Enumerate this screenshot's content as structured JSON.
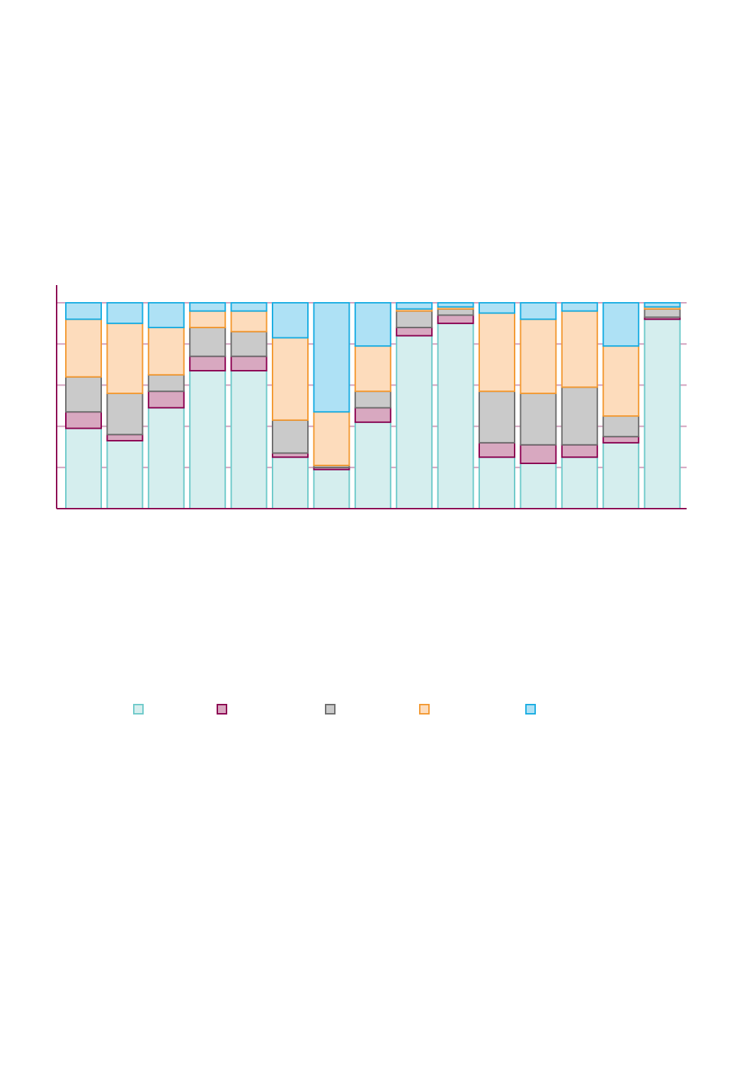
{
  "chart_data": {
    "type": "bar",
    "stacked": true,
    "categories": [
      "",
      "",
      "",
      "",
      "",
      "",
      "",
      "",
      "",
      "",
      "",
      "",
      "",
      "",
      ""
    ],
    "ylim": [
      0,
      100
    ],
    "grid": true,
    "legend_position": "bottom",
    "series": [
      {
        "name": "",
        "fill": "#d5eeee",
        "stroke": "#6fcaca",
        "values": [
          39,
          33,
          49,
          67,
          67,
          25,
          19,
          42,
          84,
          90,
          25,
          22,
          25,
          32,
          92
        ]
      },
      {
        "name": "",
        "fill": "#d8a8c0",
        "stroke": "#8b0050",
        "values": [
          8,
          3,
          8,
          7,
          7,
          2,
          1,
          7,
          4,
          4,
          7,
          9,
          6,
          3,
          1
        ]
      },
      {
        "name": "",
        "fill": "#cacaca",
        "stroke": "#6e6e6e",
        "values": [
          17,
          20,
          8,
          14,
          12,
          16,
          1,
          8,
          8,
          3,
          25,
          25,
          28,
          10,
          4
        ]
      },
      {
        "name": "",
        "fill": "#fddcbc",
        "stroke": "#f39a33",
        "values": [
          28,
          34,
          23,
          8,
          10,
          40,
          26,
          22,
          1,
          1,
          38,
          36,
          37,
          34,
          1
        ]
      },
      {
        "name": "",
        "fill": "#aee1f5",
        "stroke": "#1aade2",
        "values": [
          8,
          10,
          12,
          4,
          4,
          17,
          53,
          21,
          3,
          2,
          5,
          8,
          4,
          21,
          2
        ]
      }
    ]
  }
}
